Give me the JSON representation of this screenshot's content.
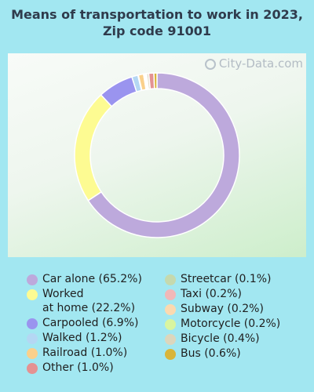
{
  "header": {
    "title": "Means of transportation to work in 2023, Zip code 91001"
  },
  "watermark": {
    "text": "City-Data.com",
    "icon": "magnifier-icon"
  },
  "chart_data": {
    "type": "pie",
    "title": "Means of transportation to work in 2023, Zip code 91001",
    "unit": "%",
    "legend_placement": "bottom",
    "slices": [
      {
        "label": "Car alone (65.2%)",
        "value": 65.2,
        "color": "#bda9dc"
      },
      {
        "label": "Worked at home (22.2%)",
        "value": 22.2,
        "color": "#fdfb92"
      },
      {
        "label": "Carpooled (6.9%)",
        "value": 6.9,
        "color": "#9a94ef"
      },
      {
        "label": "Walked (1.2%)",
        "value": 1.2,
        "color": "#b4d7f3"
      },
      {
        "label": "Railroad (1.0%)",
        "value": 1.0,
        "color": "#fad08b"
      },
      {
        "label": "Other (1.0%)",
        "value": 1.0,
        "color": "#e49292"
      },
      {
        "label": "Streetcar (0.1%)",
        "value": 0.1,
        "color": "#c5d9ae"
      },
      {
        "label": "Taxi (0.2%)",
        "value": 0.2,
        "color": "#f1b8b8"
      },
      {
        "label": "Subway (0.2%)",
        "value": 0.2,
        "color": "#fbd9b0"
      },
      {
        "label": "Motorcycle (0.2%)",
        "value": 0.2,
        "color": "#d9f5a0"
      },
      {
        "label": "Bicycle (0.4%)",
        "value": 0.4,
        "color": "#dcd6bd"
      },
      {
        "label": "Bus (0.6%)",
        "value": 0.6,
        "color": "#d9b53a"
      }
    ]
  },
  "legend": {
    "col1": [
      {
        "lines": [
          "Car alone (65.2%)"
        ],
        "color": "#bda9dc"
      },
      {
        "lines": [
          "Worked",
          "at home (22.2%)"
        ],
        "color": "#fdfb92"
      },
      {
        "lines": [
          "Carpooled (6.9%)"
        ],
        "color": "#9a94ef"
      },
      {
        "lines": [
          "Walked (1.2%)"
        ],
        "color": "#b4d7f3"
      },
      {
        "lines": [
          "Railroad (1.0%)"
        ],
        "color": "#fad08b"
      },
      {
        "lines": [
          "Other (1.0%)"
        ],
        "color": "#e49292"
      }
    ],
    "col2": [
      {
        "lines": [
          "Streetcar (0.1%)"
        ],
        "color": "#c5d9ae"
      },
      {
        "lines": [
          "Taxi (0.2%)"
        ],
        "color": "#f1b8b8"
      },
      {
        "lines": [
          "Subway (0.2%)"
        ],
        "color": "#fbd9b0"
      },
      {
        "lines": [
          "Motorcycle (0.2%)"
        ],
        "color": "#d9f5a0"
      },
      {
        "lines": [
          "Bicycle (0.4%)"
        ],
        "color": "#dcd6bd"
      },
      {
        "lines": [
          "Bus (0.6%)"
        ],
        "color": "#d9b53a"
      }
    ]
  }
}
